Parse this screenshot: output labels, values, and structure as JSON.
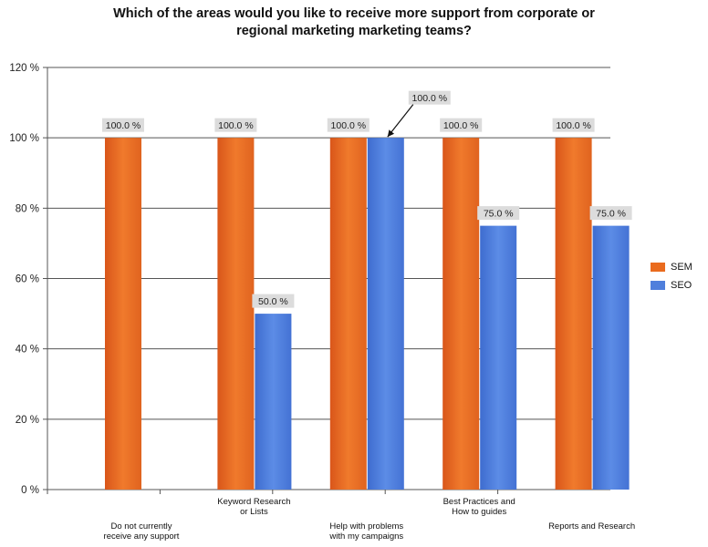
{
  "chart_data": {
    "type": "bar",
    "title_lines": [
      "Which of the areas would you like to receive more support from corporate or",
      "regional marketing marketing teams?"
    ],
    "categories": [
      [
        "Do not currently",
        "receive any support"
      ],
      [
        "Keyword Research",
        "or Lists"
      ],
      [
        "Help with problems",
        "with my campaigns"
      ],
      [
        "Best Practices and",
        "How to guides"
      ],
      [
        "Reports and Research"
      ]
    ],
    "series": [
      {
        "name": "SEM",
        "color": "#ea6b1e",
        "values": [
          100.0,
          100.0,
          100.0,
          100.0,
          100.0
        ]
      },
      {
        "name": "SEO",
        "color": "#4f7fdc",
        "values": [
          null,
          50.0,
          100.0,
          75.0,
          75.0
        ]
      }
    ],
    "data_labels": [
      [
        "100.0 %",
        "100.0 %",
        "100.0 %",
        "100.0 %",
        "100.0 %"
      ],
      [
        null,
        "50.0 %",
        "100.0 %",
        "75.0 %",
        "75.0 %"
      ]
    ],
    "y_ticks": [
      {
        "value": 0,
        "label": "0 %"
      },
      {
        "value": 20,
        "label": "20 %"
      },
      {
        "value": 40,
        "label": "40 %"
      },
      {
        "value": 60,
        "label": "60 %"
      },
      {
        "value": 80,
        "label": "80 %"
      },
      {
        "value": 100,
        "label": "100 %"
      },
      {
        "value": 120,
        "label": "120 %"
      }
    ],
    "ylim": [
      0,
      120
    ],
    "grid": true,
    "legend": "right"
  }
}
